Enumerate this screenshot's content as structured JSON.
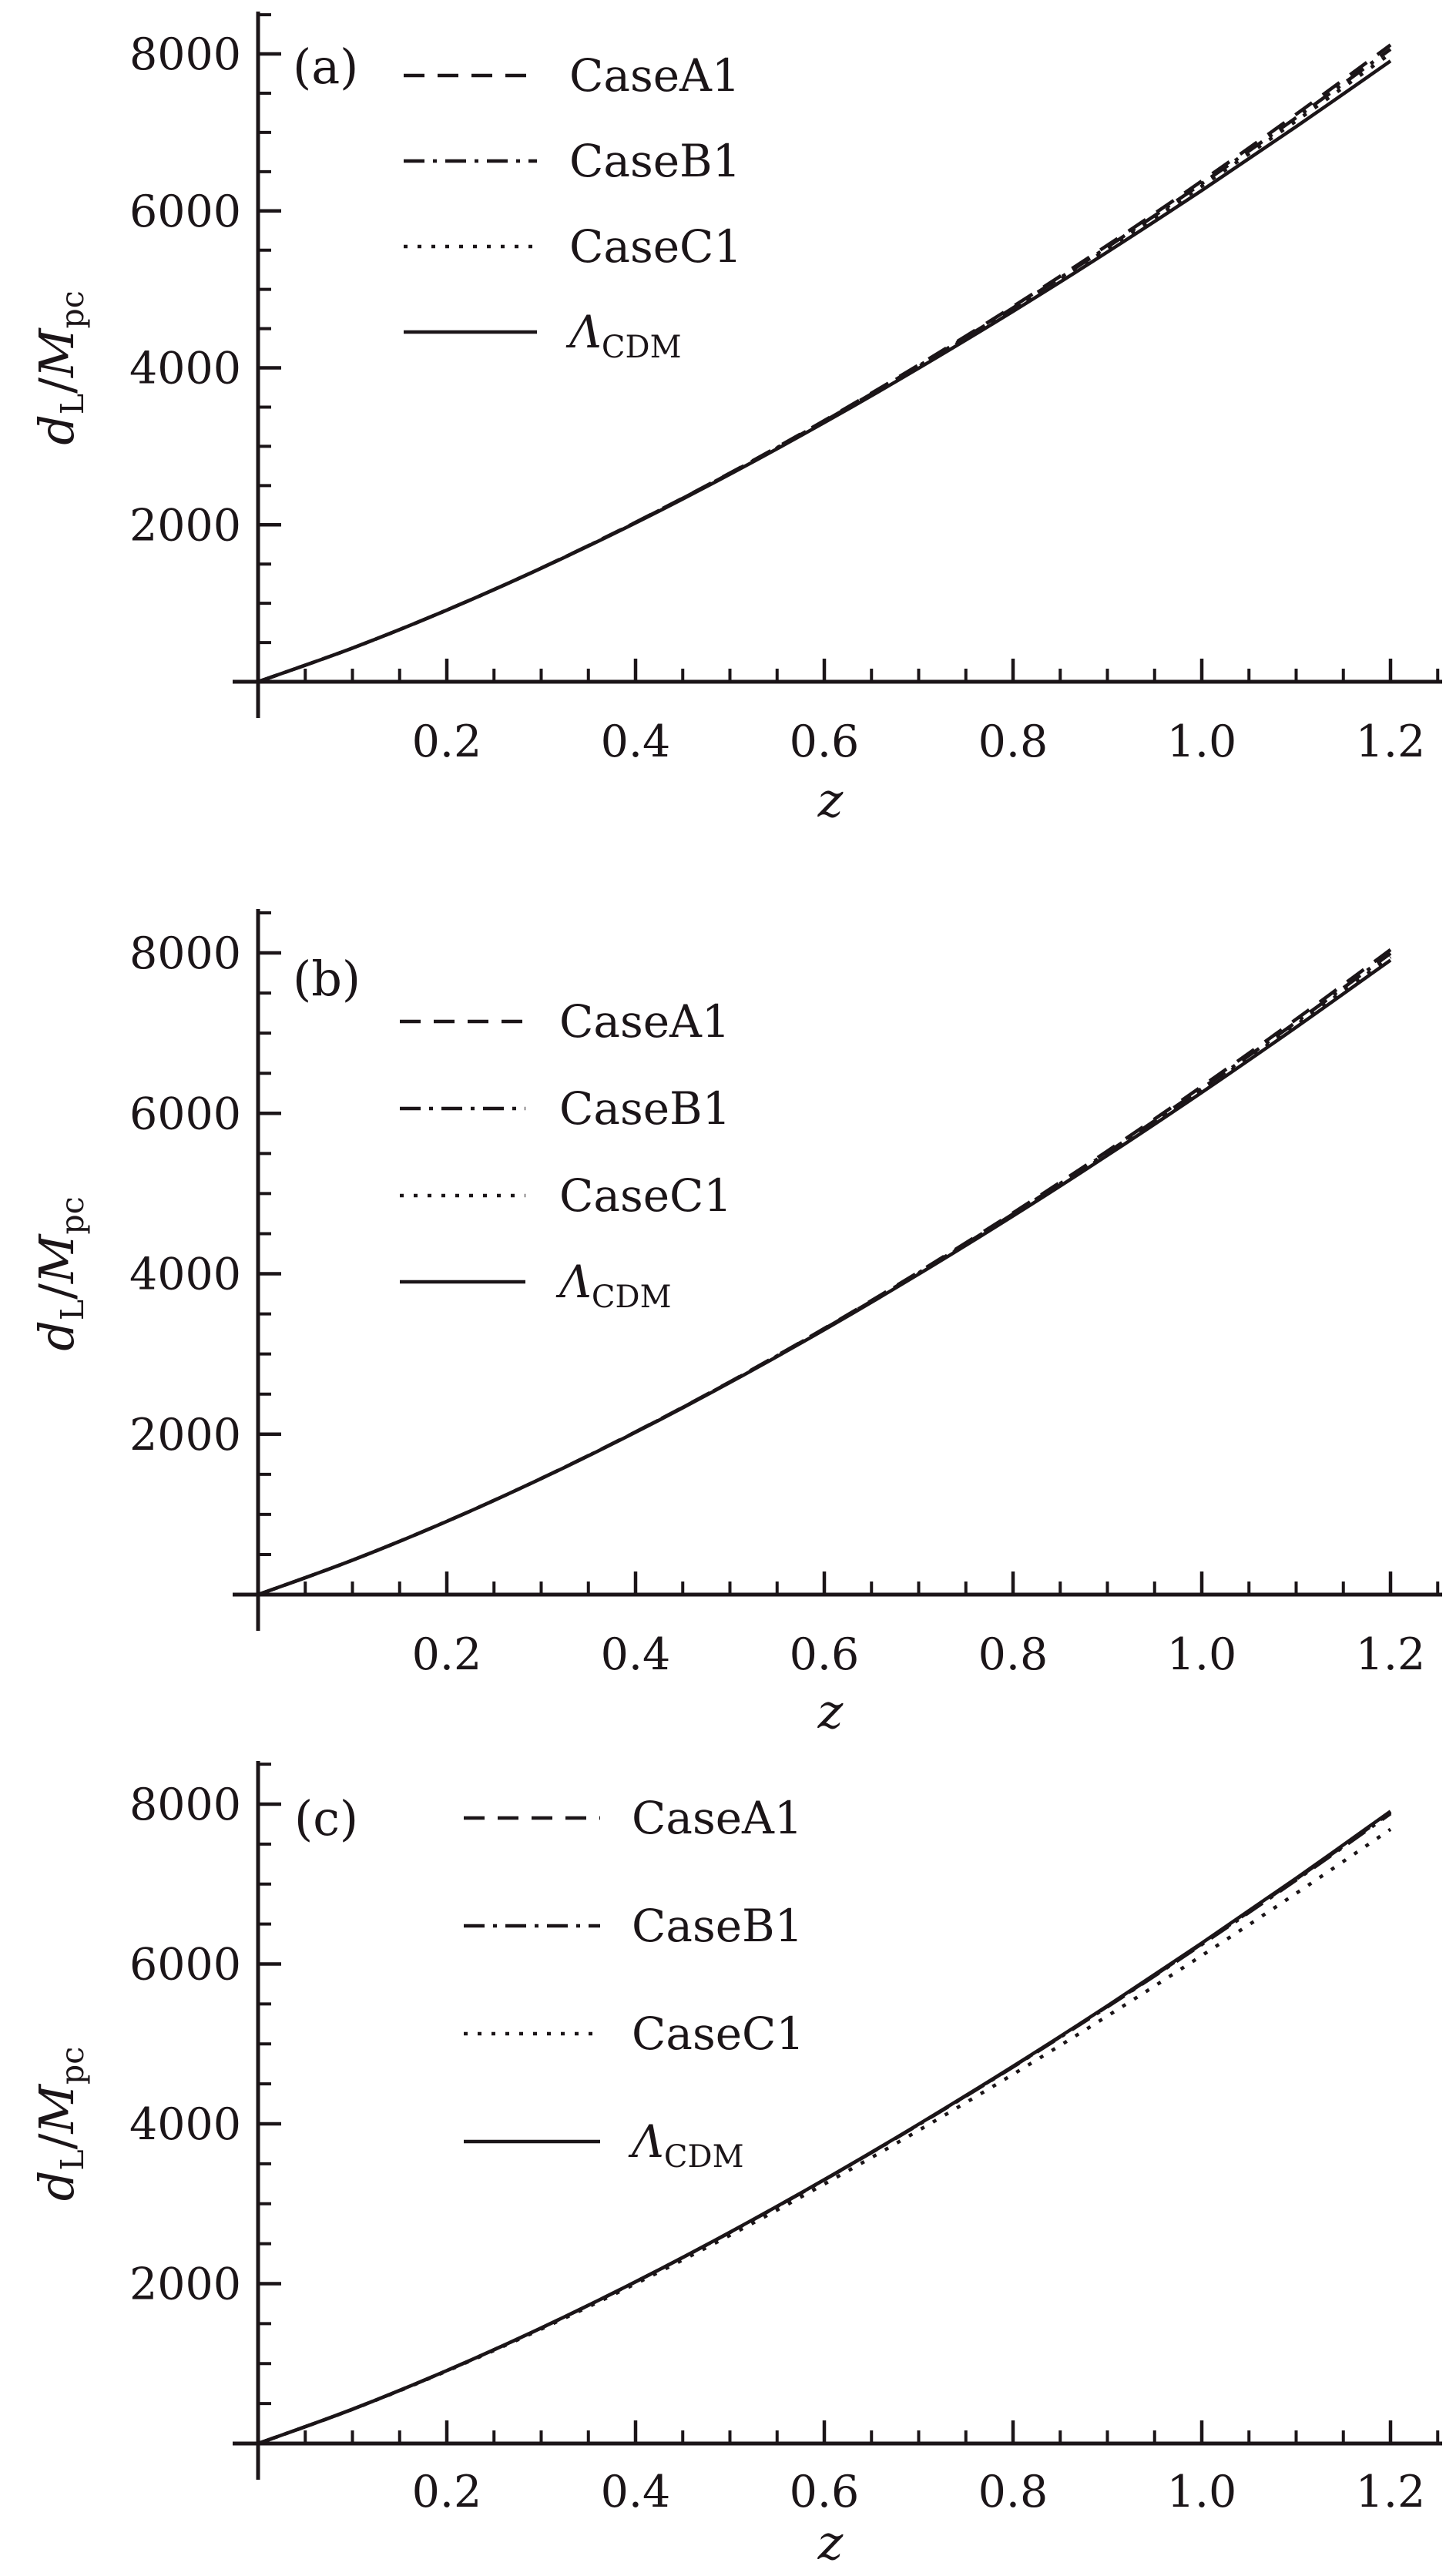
{
  "page": {
    "background": "#ffffff",
    "ink": "#1b1518"
  },
  "chart_data": [
    {
      "type": "line",
      "panel_label": "(a)",
      "xlabel": "z",
      "ylabel": "d_L/M_pc",
      "ylabel_parts": {
        "main1": "d",
        "sub1": "L",
        "slash": "/",
        "main2": "M",
        "sub2": "pc"
      },
      "xlim": [
        0,
        1.2
      ],
      "ylim": [
        0,
        8500
      ],
      "xticks": [
        0.2,
        0.4,
        0.6,
        0.8,
        1.0,
        1.2
      ],
      "xtick_labels": [
        "0.2",
        "0.4",
        "0.6",
        "0.8",
        "1.0",
        "1.2"
      ],
      "x_minor_step": 0.05,
      "yticks": [
        2000,
        4000,
        6000,
        8000
      ],
      "ytick_labels": [
        "2000",
        "4000",
        "6000",
        "8000"
      ],
      "y_minor_step": 500,
      "grid": false,
      "legend_position": "upper left inside",
      "x": [
        0,
        0.1,
        0.2,
        0.3,
        0.4,
        0.5,
        0.6,
        0.7,
        0.8,
        0.9,
        1.0,
        1.1,
        1.2
      ],
      "series": [
        {
          "name": "CaseA1",
          "style": "dashed",
          "values": [
            0,
            429,
            914,
            1449,
            2032,
            2659,
            3328,
            4036,
            4781,
            5562,
            6380,
            7231,
            8115
          ]
        },
        {
          "name": "CaseB1",
          "style": "dashdot",
          "values": [
            0,
            429,
            914,
            1448,
            2030,
            2655,
            3321,
            4025,
            4765,
            5539,
            6348,
            7188,
            8060
          ]
        },
        {
          "name": "CaseC1",
          "style": "dotted",
          "values": [
            0,
            429,
            913,
            1447,
            2028,
            2651,
            3314,
            4014,
            4748,
            5516,
            6316,
            7146,
            8004
          ]
        },
        {
          "name": "ΛCDM",
          "label_main": "Λ",
          "label_sub": "CDM",
          "style": "solid",
          "values": [
            0,
            429,
            913,
            1446,
            2024,
            2644,
            3302,
            3995,
            4720,
            5476,
            6261,
            7073,
            7910
          ]
        }
      ]
    },
    {
      "type": "line",
      "panel_label": "(b)",
      "xlabel": "z",
      "ylabel": "d_L/M_pc",
      "ylabel_parts": {
        "main1": "d",
        "sub1": "L",
        "slash": "/",
        "main2": "M",
        "sub2": "pc"
      },
      "xlim": [
        0,
        1.2
      ],
      "ylim": [
        0,
        8500
      ],
      "xticks": [
        0.2,
        0.4,
        0.6,
        0.8,
        1.0,
        1.2
      ],
      "xtick_labels": [
        "0.2",
        "0.4",
        "0.6",
        "0.8",
        "1.0",
        "1.2"
      ],
      "x_minor_step": 0.05,
      "yticks": [
        2000,
        4000,
        6000,
        8000
      ],
      "ytick_labels": [
        "2000",
        "4000",
        "6000",
        "8000"
      ],
      "y_minor_step": 500,
      "grid": false,
      "legend_position": "upper left inside",
      "x": [
        0,
        0.1,
        0.2,
        0.3,
        0.4,
        0.5,
        0.6,
        0.7,
        0.8,
        0.9,
        1.0,
        1.1,
        1.2
      ],
      "series": [
        {
          "name": "CaseA1",
          "style": "dashed",
          "values": [
            0,
            429,
            913,
            1448,
            2029,
            2653,
            3318,
            4021,
            4759,
            5530,
            6336,
            7173,
            8040
          ]
        },
        {
          "name": "CaseB1",
          "style": "dashdot",
          "values": [
            0,
            429,
            913,
            1447,
            2027,
            2650,
            3313,
            4012,
            4745,
            5512,
            6310,
            7138,
            7995
          ]
        },
        {
          "name": "CaseC1",
          "style": "dotted",
          "values": [
            0,
            429,
            913,
            1447,
            2026,
            2647,
            3307,
            4003,
            4732,
            5492,
            6284,
            7103,
            7949
          ]
        },
        {
          "name": "ΛCDM",
          "label_main": "Λ",
          "label_sub": "CDM",
          "style": "solid",
          "values": [
            0,
            429,
            913,
            1446,
            2024,
            2644,
            3302,
            3995,
            4720,
            5476,
            6261,
            7073,
            7910
          ]
        }
      ]
    },
    {
      "type": "line",
      "panel_label": "(c)",
      "xlabel": "z",
      "ylabel": "d_L/M_pc",
      "ylabel_parts": {
        "main1": "d",
        "sub1": "L",
        "slash": "/",
        "main2": "M",
        "sub2": "pc"
      },
      "xlim": [
        0,
        1.2
      ],
      "ylim": [
        0,
        8500
      ],
      "xticks": [
        0.2,
        0.4,
        0.6,
        0.8,
        1.0,
        1.2
      ],
      "xtick_labels": [
        "0.2",
        "0.4",
        "0.6",
        "0.8",
        "1.0",
        "1.2"
      ],
      "x_minor_step": 0.05,
      "yticks": [
        2000,
        4000,
        6000,
        8000
      ],
      "ytick_labels": [
        "2000",
        "4000",
        "6000",
        "8000"
      ],
      "y_minor_step": 500,
      "grid": false,
      "legend_position": "upper left inside",
      "x": [
        0,
        0.1,
        0.2,
        0.3,
        0.4,
        0.5,
        0.6,
        0.7,
        0.8,
        0.9,
        1.0,
        1.1,
        1.2
      ],
      "series": [
        {
          "name": "CaseA1",
          "style": "dashed",
          "values": [
            0,
            429,
            913,
            1446,
            2023,
            2643,
            3300,
            3992,
            4716,
            5470,
            6253,
            7062,
            7896
          ]
        },
        {
          "name": "CaseB1",
          "style": "dashdot",
          "values": [
            0,
            429,
            913,
            1445,
            2023,
            2641,
            3298,
            3989,
            4711,
            5464,
            6244,
            7051,
            7881
          ]
        },
        {
          "name": "CaseC1",
          "style": "dotted",
          "values": [
            0,
            427,
            907,
            1432,
            1999,
            2605,
            3246,
            3918,
            4620,
            5349,
            6105,
            6884,
            7685
          ]
        },
        {
          "name": "ΛCDM",
          "label_main": "Λ",
          "label_sub": "CDM",
          "style": "solid",
          "values": [
            0,
            429,
            913,
            1446,
            2024,
            2644,
            3302,
            3995,
            4720,
            5476,
            6261,
            7073,
            7910
          ]
        }
      ]
    }
  ]
}
